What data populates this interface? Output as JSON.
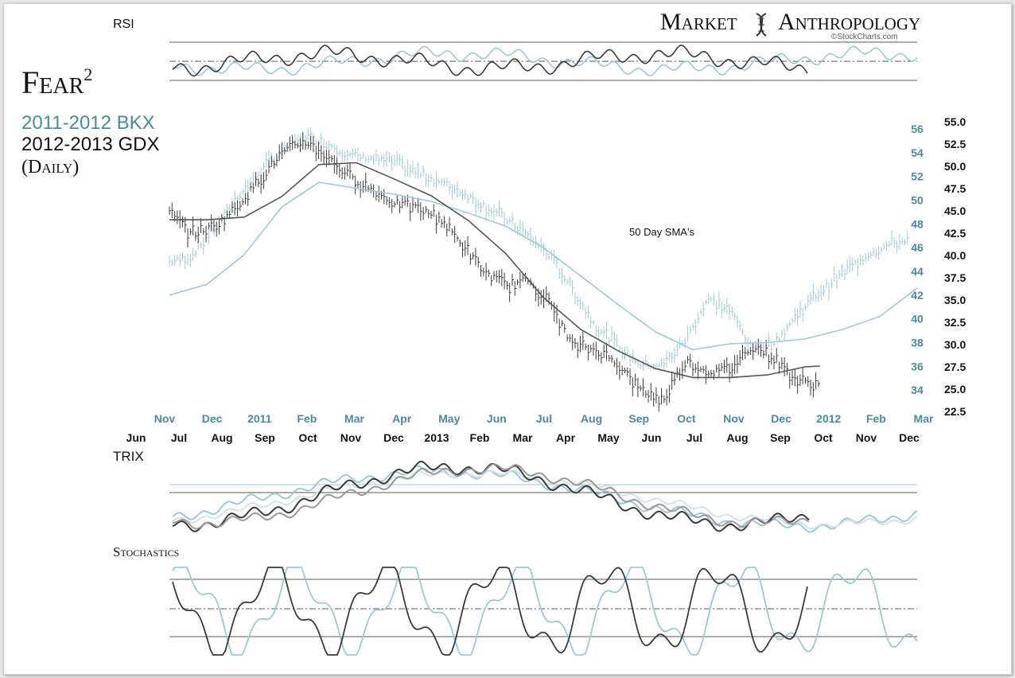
{
  "title": {
    "main": "Fear",
    "sup": "2",
    "line1": "2011-2012 BKX",
    "line2": "2012-2013 GDX",
    "line3": "(Daily)"
  },
  "brand": {
    "name_left": "Market",
    "name_right": "Anthropology",
    "credit": "©StockCharts.com"
  },
  "panels": {
    "rsi_label": "RSI",
    "trix_label": "TRIX",
    "stoch_label": "Stochastics",
    "annotation": "50 Day SMA's"
  },
  "colors": {
    "bkx": "#9cc8d6",
    "gdx": "#3a3a3a",
    "bkx_text": "#4a8a9e",
    "grid": "#555555"
  },
  "chart_data": {
    "type": "line",
    "description_note": "",
    "x_axis_bkx": [
      "Nov",
      "Dec",
      "2011",
      "Feb",
      "Mar",
      "Apr",
      "May",
      "Jun",
      "Jul",
      "Aug",
      "Sep",
      "Oct",
      "Nov",
      "Dec",
      "2012",
      "Feb",
      "Mar"
    ],
    "x_axis_gdx": [
      "Jun",
      "Jul",
      "Aug",
      "Sep",
      "Oct",
      "Nov",
      "Dec",
      "2013",
      "Feb",
      "Mar",
      "Apr",
      "May",
      "Jun",
      "Jul",
      "Aug",
      "Sep",
      "Oct",
      "Nov",
      "Dec"
    ],
    "y_axis_bkx": [
      "56",
      "54",
      "52",
      "50",
      "48",
      "46",
      "44",
      "42",
      "40",
      "38",
      "36",
      "34"
    ],
    "y_axis_gdx": [
      "55.0",
      "52.5",
      "50.0",
      "47.5",
      "45.0",
      "42.5",
      "40.0",
      "37.5",
      "35.0",
      "32.5",
      "30.0",
      "27.5",
      "25.0",
      "22.5"
    ],
    "bkx_ylim": [
      32.2,
      56.6
    ],
    "gdx_ylim": [
      22.5,
      55.0
    ],
    "x_range": [
      0,
      100
    ],
    "series": [
      {
        "name": "2011-2012 BKX",
        "axis": "bkx",
        "x": [
          0,
          3,
          6,
          9,
          12,
          15,
          18,
          21,
          24,
          27,
          30,
          33,
          36,
          39,
          42,
          45,
          48,
          51,
          54,
          57,
          60,
          63,
          66,
          69,
          72,
          75,
          78,
          81,
          84,
          87,
          90,
          93,
          96,
          99
        ],
        "values": [
          44.8,
          45.3,
          47.7,
          50.2,
          52.3,
          54.1,
          55.4,
          54.8,
          53.8,
          53.5,
          53.2,
          52.3,
          51.6,
          50.7,
          49.6,
          48.4,
          47.0,
          45.2,
          42.4,
          39.4,
          37.7,
          36.1,
          36.1,
          38.2,
          41.7,
          40.7,
          37.5,
          38.0,
          40.4,
          42.3,
          43.8,
          45.3,
          46.2,
          46.7
        ]
      },
      {
        "name": "2012-2013 GDX",
        "axis": "gdx",
        "x": [
          0,
          3,
          6,
          9,
          12,
          15,
          18,
          21,
          24,
          27,
          30,
          33,
          36,
          39,
          42,
          45,
          48,
          51,
          54,
          57,
          60,
          63,
          66,
          69,
          72,
          75,
          78,
          81,
          84,
          87
        ],
        "values": [
          44.8,
          42.4,
          43.3,
          45.4,
          48.5,
          51.4,
          52.8,
          51.2,
          48.9,
          47.4,
          45.9,
          45.4,
          44.3,
          41.4,
          38.2,
          36.6,
          37.3,
          34.5,
          29.8,
          29.4,
          27.9,
          24.9,
          23.7,
          28.2,
          26.9,
          27.3,
          29.9,
          28.3,
          25.9,
          25.5
        ]
      },
      {
        "name": "BKX 50 Day SMA",
        "axis": "bkx",
        "x": [
          0,
          5,
          10,
          15,
          20,
          25,
          30,
          35,
          40,
          45,
          50,
          55,
          60,
          65,
          70,
          75,
          80,
          85,
          90,
          95,
          100
        ],
        "values": [
          42.0,
          42.9,
          45.4,
          49.4,
          51.5,
          51.0,
          50.5,
          49.9,
          48.9,
          47.8,
          46.0,
          43.6,
          41.2,
          38.9,
          37.4,
          37.9,
          38.0,
          38.3,
          39.1,
          40.2,
          42.6
        ]
      },
      {
        "name": "GDX 50 Day SMA",
        "axis": "gdx",
        "x": [
          0,
          5,
          10,
          15,
          20,
          25,
          30,
          35,
          40,
          45,
          50,
          55,
          60,
          65,
          70,
          75,
          80,
          85,
          87
        ],
        "values": [
          44.0,
          44.0,
          44.3,
          46.6,
          50.2,
          50.4,
          48.6,
          46.7,
          43.9,
          40.2,
          35.3,
          31.7,
          29.3,
          27.3,
          26.3,
          26.3,
          26.6,
          27.5,
          27.6
        ]
      }
    ],
    "grid": false,
    "legend": "top-left"
  }
}
